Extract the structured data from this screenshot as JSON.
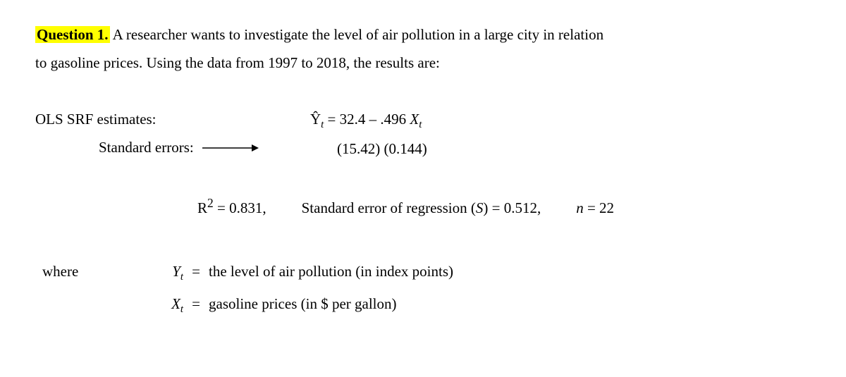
{
  "question": {
    "label": "Question 1.",
    "text1": " A researcher wants to investigate the level of air pollution in a large city in relation",
    "text2": "to gasoline prices.  Using the data from 1997 to 2018, the results are:"
  },
  "estimates": {
    "left_line1": "OLS SRF estimates:",
    "left_line2": "Standard errors:",
    "equation_html": "Ŷ<sub>t</sub> = 32.4 – .496 <span class=\"italic\">X<sub>t</sub></span>",
    "se_html": "(15.42)  (0.144)"
  },
  "stats": {
    "r2_html": "R<sup>2</sup> = 0.831,",
    "se_reg_html": "Standard error of regression (<span class=\"italic\">S</span>) = 0.512,",
    "n_html": "<span class=\"italic\">n</span> = 22"
  },
  "where": {
    "label": "where",
    "rows": [
      {
        "sym_html": "Y<sub>t</sub>",
        "def": "the level of air pollution (in index points)"
      },
      {
        "sym_html": "X<sub>t</sub>",
        "def": "gasoline prices (in $ per gallon)"
      }
    ]
  },
  "colors": {
    "highlight": "#ffff00",
    "text": "#000000",
    "background": "#ffffff"
  }
}
